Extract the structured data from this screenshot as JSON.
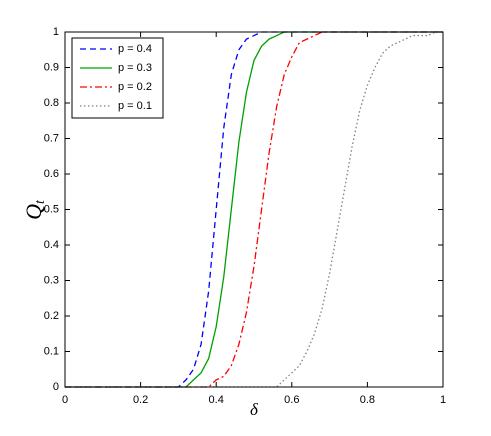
{
  "chart_data": {
    "type": "line",
    "xlabel": "δ",
    "ylabel": {
      "main": "Q",
      "subscript": "t"
    },
    "x": [
      0,
      0.02,
      0.04,
      0.06,
      0.08,
      0.1,
      0.12,
      0.14,
      0.16,
      0.18,
      0.2,
      0.22,
      0.24,
      0.26,
      0.28,
      0.3,
      0.32,
      0.34,
      0.36,
      0.38,
      0.4,
      0.42,
      0.44,
      0.46,
      0.48,
      0.5,
      0.52,
      0.54,
      0.56,
      0.58,
      0.6,
      0.62,
      0.64,
      0.66,
      0.68,
      0.7,
      0.72,
      0.74,
      0.76,
      0.78,
      0.8,
      0.82,
      0.84,
      0.86,
      0.88,
      0.9,
      0.92,
      0.94,
      0.96,
      0.98,
      1
    ],
    "series": [
      {
        "name": "p = 0.4",
        "color": "#0000ff",
        "style": "dashed",
        "values": [
          0,
          0,
          0,
          0,
          0,
          0,
          0,
          0,
          0,
          0,
          0,
          0,
          0,
          0,
          0,
          0,
          0.02,
          0.05,
          0.12,
          0.27,
          0.5,
          0.73,
          0.88,
          0.95,
          0.98,
          0.99,
          1,
          1,
          1,
          1,
          1,
          1,
          1,
          1,
          1,
          1,
          1,
          1,
          1,
          1,
          1,
          1,
          1,
          1,
          1,
          1,
          1,
          1,
          1,
          1,
          1
        ]
      },
      {
        "name": "p = 0.3",
        "color": "#00a000",
        "style": "solid",
        "values": [
          0,
          0,
          0,
          0,
          0,
          0,
          0,
          0,
          0,
          0,
          0,
          0,
          0,
          0,
          0,
          0,
          0,
          0.02,
          0.04,
          0.08,
          0.17,
          0.31,
          0.5,
          0.69,
          0.83,
          0.92,
          0.96,
          0.98,
          0.99,
          1,
          1,
          1,
          1,
          1,
          1,
          1,
          1,
          1,
          1,
          1,
          1,
          1,
          1,
          1,
          1,
          1,
          1,
          1,
          1,
          1,
          1
        ]
      },
      {
        "name": "p = 0.2",
        "color": "#ff0000",
        "style": "dashdot",
        "values": [
          0,
          0,
          0,
          0,
          0,
          0,
          0,
          0,
          0,
          0,
          0,
          0,
          0,
          0,
          0,
          0,
          0,
          0,
          0,
          0,
          0.02,
          0.03,
          0.06,
          0.12,
          0.21,
          0.34,
          0.5,
          0.66,
          0.79,
          0.88,
          0.93,
          0.97,
          0.98,
          0.99,
          1,
          1,
          1,
          1,
          1,
          1,
          1,
          1,
          1,
          1,
          1,
          1,
          1,
          1,
          1,
          1,
          1
        ]
      },
      {
        "name": "p = 0.1",
        "color": "#808080",
        "style": "dotted",
        "values": [
          0,
          0,
          0,
          0,
          0,
          0,
          0,
          0,
          0,
          0,
          0,
          0,
          0,
          0,
          0,
          0,
          0,
          0,
          0,
          0,
          0,
          0,
          0,
          0,
          0,
          0,
          0,
          0,
          0,
          0.02,
          0.04,
          0.06,
          0.1,
          0.15,
          0.22,
          0.32,
          0.44,
          0.56,
          0.68,
          0.78,
          0.85,
          0.9,
          0.94,
          0.96,
          0.97,
          0.98,
          0.99,
          0.99,
          0.99,
          1,
          1
        ]
      }
    ],
    "xlim": [
      0,
      1
    ],
    "xticks": [
      0,
      0.2,
      0.4,
      0.6,
      0.8,
      1
    ],
    "ylim": [
      0,
      1
    ],
    "yticks": [
      0,
      0.1,
      0.2,
      0.3,
      0.4,
      0.5,
      0.6,
      0.7,
      0.8,
      0.9,
      1
    ],
    "grid": false,
    "legend": "upper left"
  }
}
